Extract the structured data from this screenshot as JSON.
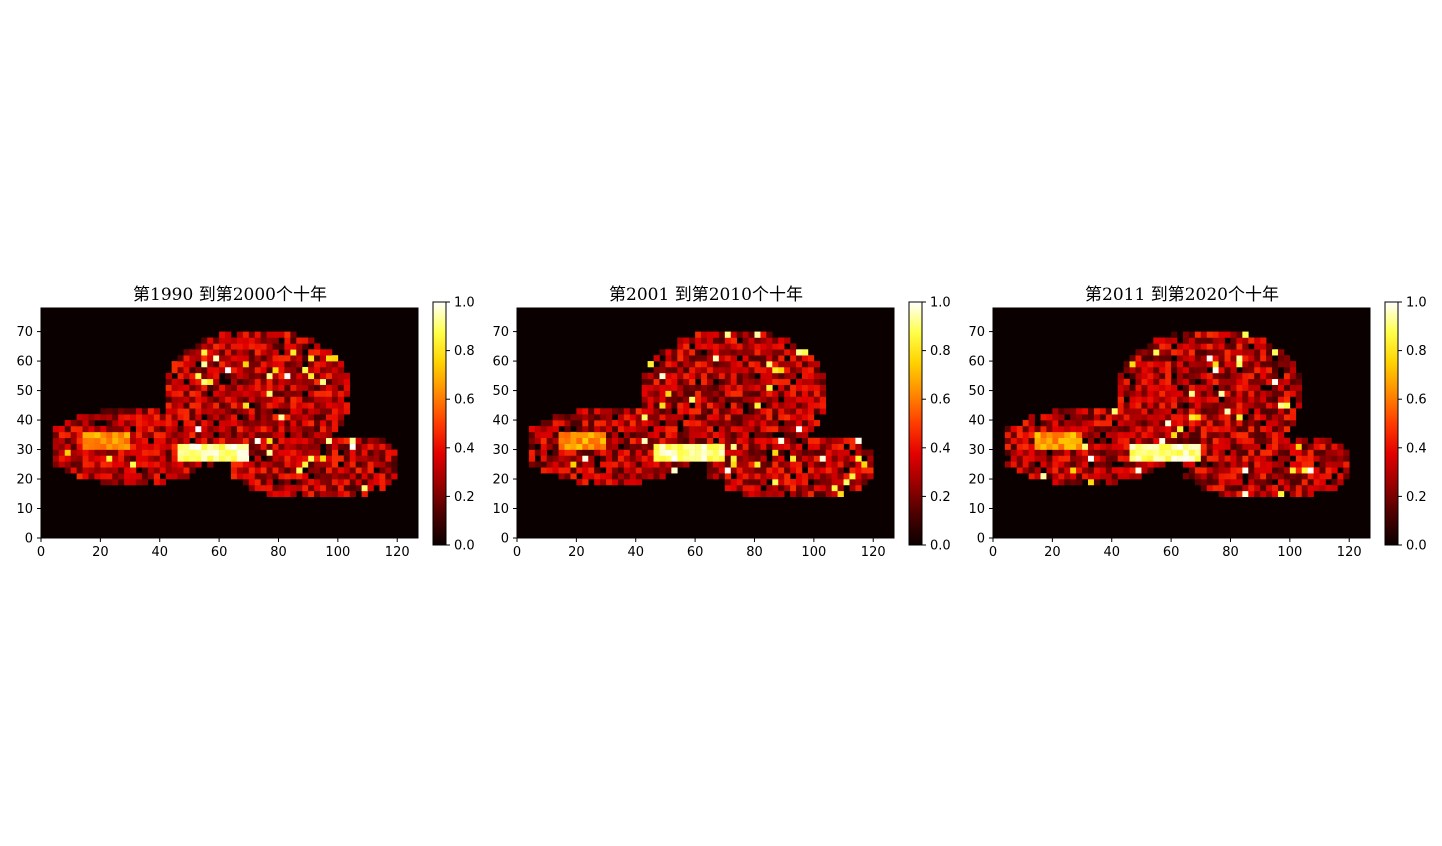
{
  "colors": {
    "colormap": [
      "#0b0000",
      "#4a0000",
      "#9a0000",
      "#e30000",
      "#ff3c00",
      "#ff8a00",
      "#ffd200",
      "#ffff4a",
      "#ffffff"
    ],
    "background": "#0b0000"
  },
  "chart_data": [
    {
      "type": "heatmap",
      "title": "第1990  到第2000个十年",
      "xlim": [
        0,
        127
      ],
      "ylim": [
        0,
        78
      ],
      "x_ticks": [
        0,
        20,
        40,
        60,
        80,
        100,
        120
      ],
      "y_ticks": [
        0,
        10,
        20,
        30,
        40,
        50,
        60,
        70
      ],
      "colorbar": {
        "range": [
          0.0,
          1.0
        ],
        "ticks": [
          "0.0",
          "0.2",
          "0.4",
          "0.6",
          "0.8",
          "1.0"
        ]
      },
      "grid": false,
      "colormap_name": "hot",
      "seed": 1
    },
    {
      "type": "heatmap",
      "title": "第2001  到第2010个十年",
      "xlim": [
        0,
        127
      ],
      "ylim": [
        0,
        78
      ],
      "x_ticks": [
        0,
        20,
        40,
        60,
        80,
        100,
        120
      ],
      "y_ticks": [
        0,
        10,
        20,
        30,
        40,
        50,
        60,
        70
      ],
      "colorbar": {
        "range": [
          0.0,
          1.0
        ],
        "ticks": [
          "0.0",
          "0.2",
          "0.4",
          "0.6",
          "0.8",
          "1.0"
        ]
      },
      "grid": false,
      "colormap_name": "hot",
      "seed": 2
    },
    {
      "type": "heatmap",
      "title": "第2011  到第2020个十年",
      "xlim": [
        0,
        127
      ],
      "ylim": [
        0,
        78
      ],
      "x_ticks": [
        0,
        20,
        40,
        60,
        80,
        100,
        120
      ],
      "y_ticks": [
        0,
        10,
        20,
        30,
        40,
        50,
        60,
        70
      ],
      "colorbar": {
        "range": [
          0.0,
          1.0
        ],
        "ticks": [
          "0.0",
          "0.2",
          "0.4",
          "0.6",
          "0.8",
          "1.0"
        ]
      },
      "grid": false,
      "colormap_name": "hot",
      "seed": 3
    }
  ]
}
